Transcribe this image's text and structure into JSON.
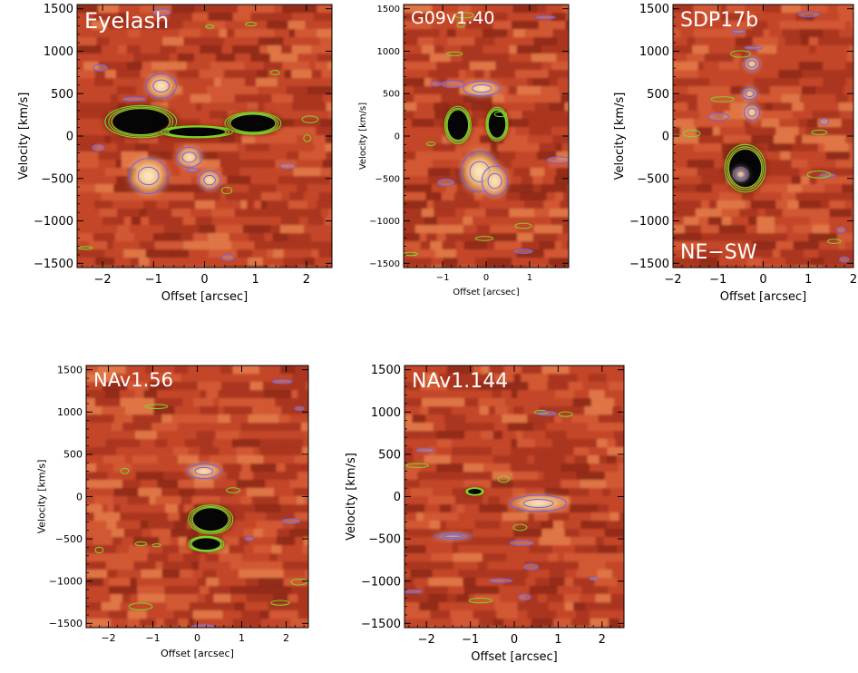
{
  "colors": {
    "background_dark": "#a9331c",
    "background_mid": "#c4472a",
    "emission_light": "#f3c27e",
    "emission_white": "#fff4e2",
    "absorption_dark": "#050505",
    "contour_blue": "#6f63e6",
    "contour_green": "#7bd62b"
  },
  "chart_data": [
    {
      "type": "heatmap",
      "title": "Eyelash",
      "xlabel": "Offset [arcsec]",
      "ylabel": "Velocity [km/s]",
      "xlim": [
        -2.5,
        2.5
      ],
      "ylim": [
        -1550,
        1550
      ],
      "xticks": [
        -2,
        -1,
        0,
        1,
        2
      ],
      "yticks": [
        -1500,
        -1000,
        -500,
        0,
        500,
        1000,
        1500
      ],
      "features": [
        {
          "kind": "absorption",
          "x": -1.25,
          "y": 170,
          "rx": 0.7,
          "ry": 190
        },
        {
          "kind": "absorption",
          "x": 0.95,
          "y": 150,
          "rx": 0.55,
          "ry": 130
        },
        {
          "kind": "absorption",
          "x": -0.15,
          "y": 50,
          "rx": 0.7,
          "ry": 70
        },
        {
          "kind": "emission",
          "x": -0.85,
          "y": 590,
          "rx": 0.35,
          "ry": 180
        },
        {
          "kind": "emission",
          "x": -1.1,
          "y": -470,
          "rx": 0.45,
          "ry": 260
        },
        {
          "kind": "emission",
          "x": -0.3,
          "y": -250,
          "rx": 0.3,
          "ry": 150
        },
        {
          "kind": "emission",
          "x": 0.1,
          "y": -520,
          "rx": 0.25,
          "ry": 140
        }
      ]
    },
    {
      "type": "heatmap",
      "title": "G09v1.40",
      "xlabel": "Offset [arcsec]",
      "ylabel": "Velocity [km/s]",
      "xlim": [
        -1.9,
        1.9
      ],
      "ylim": [
        -1550,
        1550
      ],
      "xticks": [
        -1,
        0,
        1
      ],
      "yticks": [
        -1500,
        -1000,
        -500,
        0,
        500,
        1000,
        1500
      ],
      "features": [
        {
          "kind": "absorption",
          "x": -0.65,
          "y": 130,
          "rx": 0.3,
          "ry": 220
        },
        {
          "kind": "absorption",
          "x": 0.25,
          "y": 140,
          "rx": 0.25,
          "ry": 200
        },
        {
          "kind": "emission",
          "x": -0.1,
          "y": 560,
          "rx": 0.5,
          "ry": 110
        },
        {
          "kind": "emission",
          "x": -0.15,
          "y": -420,
          "rx": 0.5,
          "ry": 300
        },
        {
          "kind": "emission",
          "x": 0.2,
          "y": -530,
          "rx": 0.35,
          "ry": 220
        }
      ]
    },
    {
      "type": "heatmap",
      "title": "SDP17b",
      "annotation": "NE−SW",
      "xlabel": "Offset [arcsec]",
      "ylabel": "Velocity [km/s]",
      "xlim": [
        -2.0,
        2.0
      ],
      "ylim": [
        -1550,
        1550
      ],
      "xticks": [
        -2,
        -1,
        0,
        1,
        2
      ],
      "yticks": [
        -1500,
        -1000,
        -500,
        0,
        500,
        1000,
        1500
      ],
      "features": [
        {
          "kind": "absorption",
          "x": -0.4,
          "y": -380,
          "rx": 0.45,
          "ry": 280
        },
        {
          "kind": "emission",
          "x": -0.25,
          "y": 280,
          "rx": 0.2,
          "ry": 120
        },
        {
          "kind": "emission",
          "x": -0.25,
          "y": 850,
          "rx": 0.2,
          "ry": 100
        },
        {
          "kind": "emission",
          "x": -0.3,
          "y": 500,
          "rx": 0.2,
          "ry": 90
        },
        {
          "kind": "emission",
          "x": -0.5,
          "y": -450,
          "rx": 0.2,
          "ry": 100
        }
      ]
    },
    {
      "type": "heatmap",
      "title": "NAv1.56",
      "xlabel": "Offset [arcsec]",
      "ylabel": "Velocity [km/s]",
      "xlim": [
        -2.5,
        2.5
      ],
      "ylim": [
        -1550,
        1550
      ],
      "xticks": [
        -2,
        -1,
        0,
        1,
        2
      ],
      "yticks": [
        -1500,
        -1000,
        -500,
        0,
        500,
        1000,
        1500
      ],
      "features": [
        {
          "kind": "absorption",
          "x": 0.3,
          "y": -270,
          "rx": 0.5,
          "ry": 170
        },
        {
          "kind": "absorption",
          "x": 0.2,
          "y": -560,
          "rx": 0.4,
          "ry": 90
        },
        {
          "kind": "emission",
          "x": 0.15,
          "y": 300,
          "rx": 0.45,
          "ry": 110
        }
      ]
    },
    {
      "type": "heatmap",
      "title": "NAv1.144",
      "xlabel": "Offset [arcsec]",
      "ylabel": "Velocity [km/s]",
      "xlim": [
        -2.5,
        2.5
      ],
      "ylim": [
        -1550,
        1550
      ],
      "xticks": [
        -2,
        -1,
        0,
        1,
        2
      ],
      "yticks": [
        -1500,
        -1000,
        -500,
        0,
        500,
        1000,
        1500
      ],
      "features": [
        {
          "kind": "emission",
          "x": 0.55,
          "y": -80,
          "rx": 0.75,
          "ry": 120
        },
        {
          "kind": "emission",
          "x": -1.4,
          "y": -470,
          "rx": 0.5,
          "ry": 40
        },
        {
          "kind": "absorption",
          "x": -0.9,
          "y": 60,
          "rx": 0.2,
          "ry": 45
        }
      ]
    }
  ]
}
